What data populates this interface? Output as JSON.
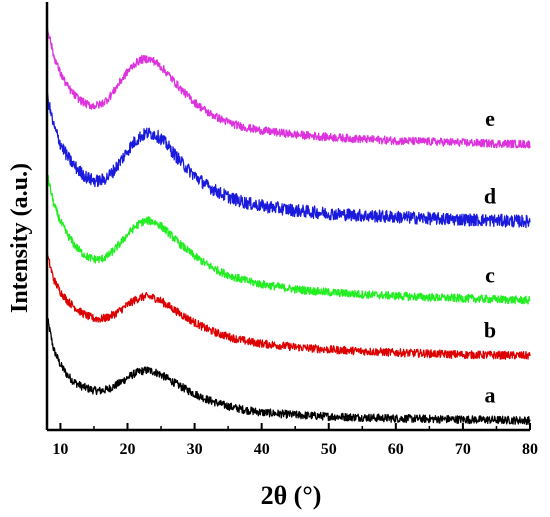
{
  "chart_data": {
    "type": "line",
    "title": "",
    "xlabel": "2θ (°)",
    "ylabel": "Intensity (a.u.)",
    "xlim": [
      8,
      80
    ],
    "xticks": [
      10,
      20,
      30,
      40,
      50,
      60,
      70,
      80
    ],
    "y_ticks_shown": false,
    "grid": false,
    "legend": "none; series letters printed at right ends of curves",
    "series": [
      {
        "name": "a",
        "color": "#000000",
        "x": [
          8,
          9,
          10,
          11,
          12,
          13,
          14,
          15,
          16,
          17,
          18,
          19,
          20,
          21,
          22,
          23,
          24,
          25,
          26,
          27,
          28,
          30,
          32,
          34,
          36,
          38,
          40,
          45,
          50,
          55,
          60,
          65,
          70,
          75,
          80
        ],
        "y": [
          22.5,
          16.0,
          13.0,
          11.0,
          9.6,
          8.8,
          8.3,
          7.9,
          7.8,
          8.1,
          8.7,
          9.5,
          10.4,
          11.2,
          11.7,
          11.9,
          11.6,
          11.0,
          10.2,
          9.4,
          8.6,
          7.2,
          6.0,
          5.1,
          4.4,
          3.9,
          3.5,
          3.0,
          2.7,
          2.5,
          2.3,
          2.2,
          2.1,
          2.0,
          1.9
        ]
      },
      {
        "name": "b",
        "color": "#dd0000",
        "x": [
          8,
          9,
          10,
          11,
          12,
          13,
          14,
          15,
          16,
          17,
          18,
          19,
          20,
          21,
          22,
          23,
          24,
          25,
          26,
          27,
          28,
          30,
          32,
          34,
          36,
          38,
          40,
          45,
          50,
          55,
          60,
          65,
          70,
          75,
          80
        ],
        "y": [
          35.0,
          30.0,
          27.5,
          25.8,
          24.6,
          23.5,
          22.7,
          22.2,
          22.1,
          22.4,
          23.0,
          23.9,
          24.9,
          25.8,
          26.4,
          26.6,
          26.3,
          25.7,
          24.8,
          23.9,
          23.0,
          21.4,
          20.0,
          19.0,
          18.2,
          17.6,
          17.2,
          16.5,
          16.0,
          15.7,
          15.4,
          15.2,
          15.0,
          14.9,
          14.8
        ]
      },
      {
        "name": "c",
        "color": "#22ee22",
        "x": [
          8,
          9,
          10,
          11,
          12,
          13,
          14,
          15,
          16,
          17,
          18,
          19,
          20,
          21,
          22,
          23,
          24,
          25,
          26,
          27,
          28,
          30,
          32,
          34,
          36,
          38,
          40,
          45,
          50,
          55,
          60,
          65,
          70,
          75,
          80
        ],
        "y": [
          51.0,
          45.0,
          41.5,
          39.0,
          37.0,
          35.5,
          34.5,
          34.0,
          34.0,
          34.6,
          35.8,
          37.3,
          38.9,
          40.3,
          41.3,
          41.7,
          41.4,
          40.6,
          39.4,
          38.1,
          36.8,
          34.6,
          32.8,
          31.4,
          30.4,
          29.6,
          29.0,
          28.0,
          27.4,
          27.0,
          26.7,
          26.4,
          26.2,
          26.0,
          25.8
        ]
      },
      {
        "name": "d",
        "color": "#1a1add",
        "x": [
          8,
          9,
          10,
          11,
          12,
          13,
          14,
          15,
          16,
          17,
          18,
          19,
          20,
          21,
          22,
          23,
          24,
          25,
          26,
          27,
          28,
          30,
          32,
          34,
          36,
          38,
          40,
          45,
          50,
          55,
          60,
          65,
          70,
          75,
          80
        ],
        "y": [
          66.5,
          60.5,
          57.0,
          54.5,
          52.7,
          51.3,
          50.2,
          49.6,
          49.6,
          50.3,
          51.7,
          53.6,
          55.6,
          57.3,
          58.5,
          59.1,
          58.9,
          58.0,
          56.6,
          54.9,
          53.3,
          50.6,
          48.5,
          47.0,
          45.9,
          45.1,
          44.6,
          43.7,
          43.1,
          42.7,
          42.4,
          42.1,
          41.9,
          41.7,
          41.5
        ]
      },
      {
        "name": "e",
        "color": "#dd33dd",
        "x": [
          8,
          9,
          10,
          11,
          12,
          13,
          14,
          15,
          16,
          17,
          18,
          19,
          20,
          21,
          22,
          23,
          24,
          25,
          26,
          27,
          28,
          30,
          32,
          34,
          36,
          38,
          40,
          45,
          50,
          55,
          60,
          65,
          70,
          75,
          80
        ],
        "y": [
          80.5,
          74.5,
          71.0,
          68.5,
          66.8,
          65.6,
          64.8,
          64.5,
          64.8,
          65.8,
          67.5,
          69.5,
          71.3,
          72.8,
          73.7,
          73.9,
          73.4,
          72.3,
          70.9,
          69.3,
          67.8,
          65.2,
          63.2,
          61.8,
          60.8,
          60.1,
          59.6,
          58.8,
          58.3,
          57.9,
          57.6,
          57.4,
          57.2,
          57.0,
          56.9
        ]
      }
    ]
  }
}
